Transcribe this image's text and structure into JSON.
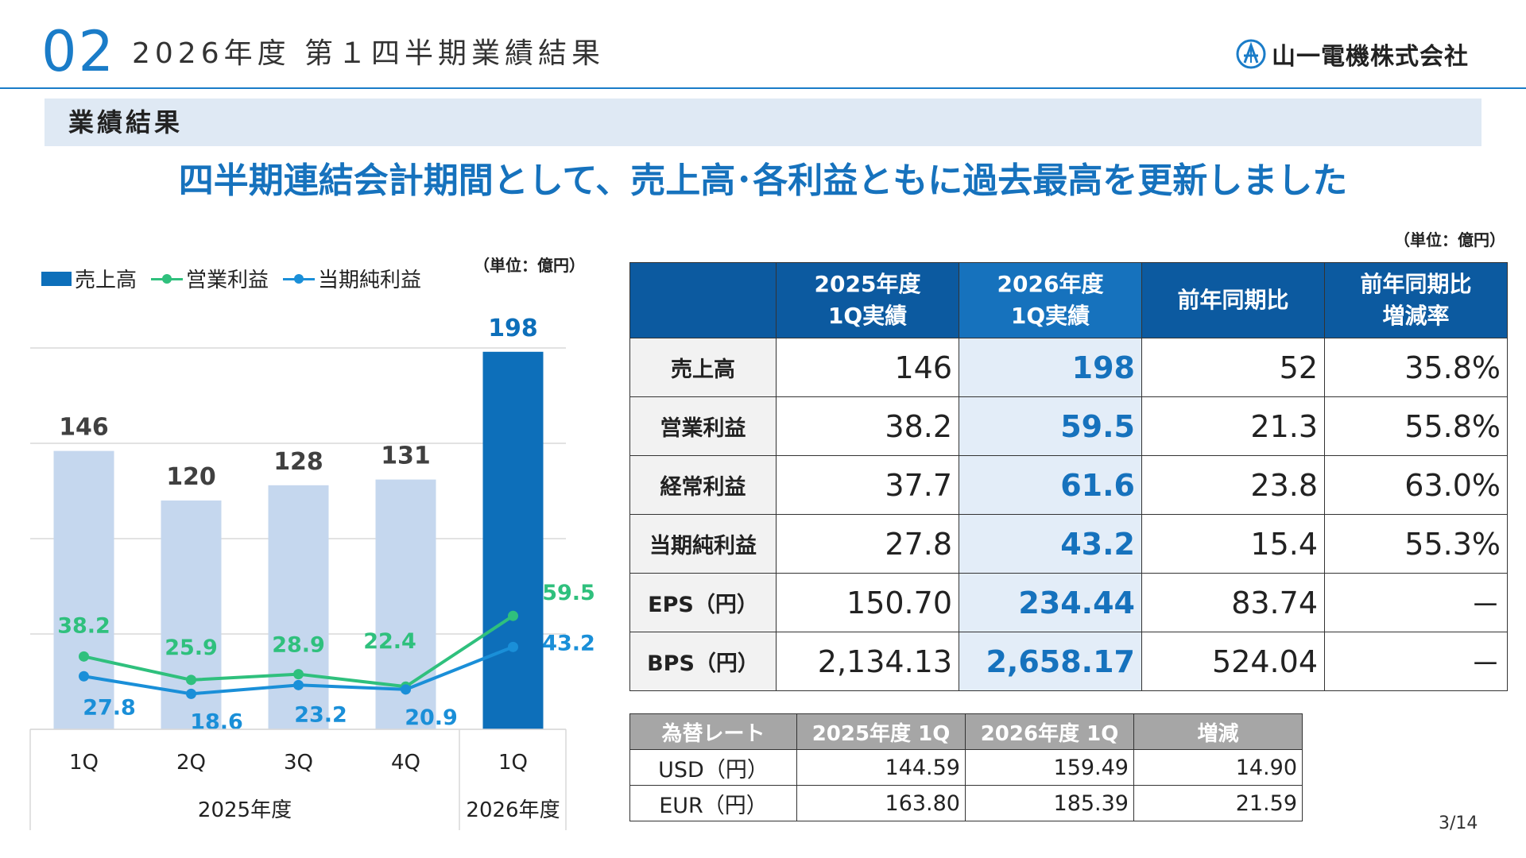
{
  "header": {
    "section_number": "02",
    "title": "2026年度 第１四半期業績結果",
    "company": "山一電機株式会社"
  },
  "section_band": "業績結果",
  "headline": "四半期連結会計期間として、売上高･各利益ともに過去最高を更新しました",
  "chart_data": {
    "type": "bar",
    "unit_label": "（単位：億円）",
    "categories": [
      "1Q",
      "2Q",
      "3Q",
      "4Q",
      "1Q"
    ],
    "year_groups": [
      {
        "label": "2025年度",
        "span": 4
      },
      {
        "label": "2026年度",
        "span": 1
      }
    ],
    "legend": [
      "売上高",
      "営業利益",
      "当期純利益"
    ],
    "ylim": [
      0,
      200
    ],
    "grid": true,
    "series": [
      {
        "name": "売上高",
        "type": "bar",
        "values": [
          146,
          120,
          128,
          131,
          198
        ],
        "labels": [
          "146",
          "120",
          "128",
          "131",
          "198"
        ],
        "color": "#c5d7ee",
        "highlight_color": "#0d6fba"
      },
      {
        "name": "営業利益",
        "type": "line",
        "values": [
          38.2,
          25.9,
          28.9,
          22.4,
          59.5
        ],
        "labels": [
          "38.2",
          "25.9",
          "28.9",
          "22.4",
          "59.5"
        ],
        "color": "#2fc07d"
      },
      {
        "name": "当期純利益",
        "type": "line",
        "values": [
          27.8,
          18.6,
          23.2,
          20.9,
          43.2
        ],
        "labels": [
          "27.8",
          "18.6",
          "23.2",
          "20.9",
          "43.2"
        ],
        "color": "#1a8fd8"
      }
    ]
  },
  "results_table": {
    "unit_label": "（単位：億円）",
    "headers": [
      "2025年度\n1Q実績",
      "2026年度\n1Q実績",
      "前年同期比",
      "前年同期比\n増減率"
    ],
    "rows": [
      {
        "label": "売上高",
        "values": [
          "146",
          "198",
          "52",
          "35.8%"
        ]
      },
      {
        "label": "営業利益",
        "values": [
          "38.2",
          "59.5",
          "21.3",
          "55.8%"
        ]
      },
      {
        "label": "経常利益",
        "values": [
          "37.7",
          "61.6",
          "23.8",
          "63.0%"
        ]
      },
      {
        "label": "当期純利益",
        "values": [
          "27.8",
          "43.2",
          "15.4",
          "55.3%"
        ]
      },
      {
        "label": "EPS（円）",
        "values": [
          "150.70",
          "234.44",
          "83.74",
          "－"
        ]
      },
      {
        "label": "BPS（円）",
        "values": [
          "2,134.13",
          "2,658.17",
          "524.04",
          "－"
        ]
      }
    ]
  },
  "fx_table": {
    "headers": [
      "為替レート",
      "2025年度 1Q",
      "2026年度 1Q",
      "増減"
    ],
    "rows": [
      {
        "label": "USD（円）",
        "values": [
          "144.59",
          "159.49",
          "14.90"
        ]
      },
      {
        "label": "EUR（円）",
        "values": [
          "163.80",
          "185.39",
          "21.59"
        ]
      }
    ]
  },
  "page_number": "3/14",
  "colors": {
    "accent": "#1672bd",
    "header_dark": "#0c5aa0",
    "band": "#dfe9f4",
    "bar_light": "#c5d7ee",
    "bar_dark": "#0d6fba",
    "op_profit": "#2fc07d",
    "net_profit": "#1a8fd8"
  }
}
